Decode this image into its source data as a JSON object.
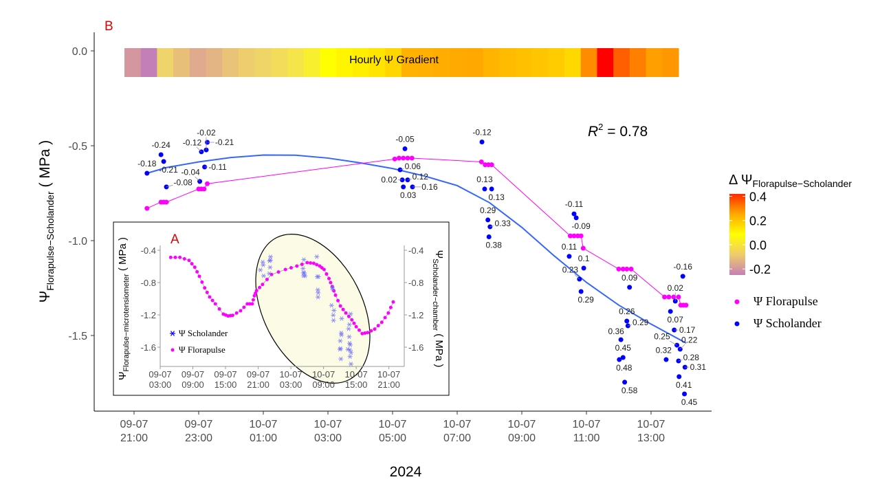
{
  "panel_label": "B",
  "chart_data": [
    {
      "type": "scatter",
      "xlabel": "2024",
      "ylabel": {
        "symbol": "Ψ",
        "sub": "Florapulse−Scholander",
        "unit": " ( MPa )"
      },
      "ylim": [
        -1.9,
        0.1
      ],
      "grid": false,
      "x_ticks": [
        {
          "date": "09-07",
          "time": "21:00"
        },
        {
          "date": "09-07",
          "time": "23:00"
        },
        {
          "date": "10-07",
          "time": "01:00"
        },
        {
          "date": "10-07",
          "time": "03:00"
        },
        {
          "date": "10-07",
          "time": "05:00"
        },
        {
          "date": "10-07",
          "time": "07:00"
        },
        {
          "date": "10-07",
          "time": "09:00"
        },
        {
          "date": "10-07",
          "time": "11:00"
        },
        {
          "date": "10-07",
          "time": "13:00"
        }
      ],
      "y_ticks": [
        "0.0",
        "-0.5",
        "-1.0",
        "-1.5"
      ],
      "y_tick_values": [
        0,
        -0.5,
        -1.0,
        -1.5
      ],
      "annotation": {
        "r": "R",
        "sup": "2",
        "rest": " = 0.78"
      },
      "heatmap": {
        "title": "Hourly Ψ Gradient",
        "colors": [
          "#d4979f",
          "#c27fb8",
          "#efd46c",
          "#e8bf78",
          "#dfaa8e",
          "#e3b584",
          "#e9c478",
          "#eecd6e",
          "#efd468",
          "#f2dc5a",
          "#f5e54a",
          "#f8f02e",
          "#ffff00",
          "#fff500",
          "#ffee00",
          "#ffe400",
          "#ffd600",
          "#ffb300",
          "#ffb000",
          "#ffad00",
          "#ffaa00",
          "#ffa800",
          "#ffb400",
          "#ffbb00",
          "#ffc000",
          "#ffc500",
          "#ffcc00",
          "#ffd800",
          "#ff8c00",
          "#ff0000",
          "#ff5f00",
          "#ff8000",
          "#ffa000",
          "#ff9800"
        ]
      },
      "colorbar": {
        "title_prefix": "Δ Ψ",
        "title_sub": "Florapulse−Scholander",
        "ticks": [
          "0.4",
          "0.2",
          "0.0",
          "-0.2"
        ],
        "range": [
          -0.25,
          0.42
        ],
        "colors": [
          "#c77fb6",
          "#eecb6c",
          "#ffff00",
          "#ffaa00",
          "#ff2a00"
        ]
      },
      "legend": {
        "position": "right",
        "items": [
          {
            "label": "Ψ Florapulse",
            "color": "#ff00ff"
          },
          {
            "label": "Ψ Scholander",
            "color": "#0000ff"
          }
        ]
      },
      "series": [
        {
          "name": "Ψ Scholander",
          "color": "#0000ff",
          "points": [
            {
              "t": "09-07 21:24",
              "v": -0.645,
              "label": "-0.18"
            },
            {
              "t": "09-07 21:50",
              "v": -0.547,
              "label": "-0.24"
            },
            {
              "t": "09-07 21:55",
              "v": -0.583,
              "label": "-0.21"
            },
            {
              "t": "09-07 22:00",
              "v": -0.717,
              "label": "-0.08"
            },
            {
              "t": "09-07 23:02",
              "v": -0.688,
              "label": "-0.04"
            },
            {
              "t": "09-07 23:05",
              "v": -0.532,
              "label": "-0.12"
            },
            {
              "t": "09-07 23:11",
              "v": -0.612,
              "label": "-0.11"
            },
            {
              "t": "09-07 23:14",
              "v": -0.522,
              "label": "-0.02"
            },
            {
              "t": "09-07 23:16",
              "v": -0.482,
              "label": "-0.21"
            },
            {
              "t": "10-07 05:14",
              "v": -0.627,
              "label": "0.06"
            },
            {
              "t": "10-07 05:18",
              "v": -0.68,
              "label": "0.02"
            },
            {
              "t": "10-07 05:20",
              "v": -0.717,
              "label": "0.03"
            },
            {
              "t": "10-07 05:23",
              "v": -0.516,
              "label": "-0.05"
            },
            {
              "t": "10-07 05:28",
              "v": -0.68,
              "label": "0.12"
            },
            {
              "t": "10-07 05:37",
              "v": -0.717,
              "label": "0.16"
            },
            {
              "t": "10-07 07:46",
              "v": -0.48,
              "label": "-0.12"
            },
            {
              "t": "10-07 07:51",
              "v": -0.728,
              "label": "0.13"
            },
            {
              "t": "10-07 07:57",
              "v": -0.891,
              "label": "0.29"
            },
            {
              "t": "10-07 07:59",
              "v": -0.98,
              "label": "0.38"
            },
            {
              "t": "10-07 08:01",
              "v": -0.927,
              "label": "0.33"
            },
            {
              "t": "10-07 08:04",
              "v": -0.728,
              "label": "0.13"
            },
            {
              "t": "10-07 10:28",
              "v": -1.083,
              "label": "0.11"
            },
            {
              "t": "10-07 10:37",
              "v": -0.859,
              "label": "-0.11"
            },
            {
              "t": "10-07 10:41",
              "v": -0.88,
              "label": "-0.09"
            },
            {
              "t": "10-07 10:47",
              "v": -1.203,
              "label": "0.23"
            },
            {
              "t": "10-07 10:50",
              "v": -1.268,
              "label": "0.29"
            },
            {
              "t": "10-07 10:55",
              "v": -1.145,
              "label": "0.1"
            },
            {
              "t": "10-07 12:01",
              "v": -1.627,
              "label": "0.48"
            },
            {
              "t": "10-07 12:04",
              "v": -1.522,
              "label": "0.36"
            },
            {
              "t": "10-07 12:08",
              "v": -1.616,
              "label": "0.45"
            },
            {
              "t": "10-07 12:11",
              "v": -1.746,
              "label": "0.58"
            },
            {
              "t": "10-07 12:15",
              "v": -1.424,
              "label": "0.26"
            },
            {
              "t": "10-07 12:17",
              "v": -1.449,
              "label": "0.29"
            },
            {
              "t": "10-07 12:20",
              "v": -1.246,
              "label": "0.09"
            },
            {
              "t": "10-07 13:28",
              "v": -1.627,
              "label": "0.32"
            },
            {
              "t": "10-07 13:36",
              "v": -1.373,
              "label": "0.07"
            },
            {
              "t": "10-07 13:43",
              "v": -1.471,
              "label": "0.17"
            },
            {
              "t": "10-07 13:45",
              "v": -1.319,
              "label": "0.02"
            },
            {
              "t": "10-07 13:48",
              "v": -1.551,
              "label": "0.25"
            },
            {
              "t": "10-07 13:51",
              "v": -1.634,
              "label": "0.28"
            },
            {
              "t": "10-07 13:52",
              "v": -1.717,
              "label": "0.41"
            },
            {
              "t": "10-07 13:54",
              "v": -1.572,
              "label": "0.22"
            },
            {
              "t": "10-07 13:59",
              "v": -1.188,
              "label": "-0.16"
            },
            {
              "t": "10-07 14:02",
              "v": -1.808,
              "label": "0.45"
            },
            {
              "t": "10-07 14:03",
              "v": -1.667,
              "label": "0.31"
            }
          ]
        },
        {
          "name": "Ψ Florapulse",
          "color": "#ff00ff",
          "points": [
            {
              "t": "09-07 21:24",
              "v": -0.83
            },
            {
              "t": "09-07 21:50",
              "v": -0.797
            },
            {
              "t": "09-07 21:55",
              "v": -0.797
            },
            {
              "t": "09-07 22:00",
              "v": -0.797
            },
            {
              "t": "09-07 23:00",
              "v": -0.728
            },
            {
              "t": "09-07 23:05",
              "v": -0.728
            },
            {
              "t": "09-07 23:10",
              "v": -0.728
            },
            {
              "t": "09-07 23:16",
              "v": -0.7
            },
            {
              "t": "10-07 05:04",
              "v": -0.57
            },
            {
              "t": "10-07 05:12",
              "v": -0.565
            },
            {
              "t": "10-07 05:20",
              "v": -0.565
            },
            {
              "t": "10-07 05:28",
              "v": -0.565
            },
            {
              "t": "10-07 05:36",
              "v": -0.565
            },
            {
              "t": "10-07 07:45",
              "v": -0.585
            },
            {
              "t": "10-07 07:52",
              "v": -0.6
            },
            {
              "t": "10-07 07:58",
              "v": -0.6
            },
            {
              "t": "10-07 08:04",
              "v": -0.6
            },
            {
              "t": "10-07 10:30",
              "v": -0.975
            },
            {
              "t": "10-07 10:37",
              "v": -0.975
            },
            {
              "t": "10-07 10:44",
              "v": -0.975
            },
            {
              "t": "10-07 10:50",
              "v": -0.975
            },
            {
              "t": "10-07 10:54",
              "v": -1.04
            },
            {
              "t": "10-07 12:00",
              "v": -1.15
            },
            {
              "t": "10-07 12:08",
              "v": -1.15
            },
            {
              "t": "10-07 12:15",
              "v": -1.15
            },
            {
              "t": "10-07 12:23",
              "v": -1.15
            },
            {
              "t": "10-07 13:25",
              "v": -1.297
            },
            {
              "t": "10-07 13:33",
              "v": -1.297
            },
            {
              "t": "10-07 13:42",
              "v": -1.297
            },
            {
              "t": "10-07 13:51",
              "v": -1.297
            },
            {
              "t": "10-07 13:55",
              "v": -1.34
            },
            {
              "t": "10-07 14:00",
              "v": -1.34
            },
            {
              "t": "10-07 14:05",
              "v": -1.34
            }
          ]
        }
      ],
      "scholander_fit": [
        {
          "t": "09-07 21:24",
          "v": -0.645
        },
        {
          "t": "09-07 22:00",
          "v": -0.615
        },
        {
          "t": "09-07 23:00",
          "v": -0.585
        },
        {
          "t": "10-07 00:00",
          "v": -0.562
        },
        {
          "t": "10-07 01:00",
          "v": -0.549
        },
        {
          "t": "10-07 02:00",
          "v": -0.55
        },
        {
          "t": "10-07 03:00",
          "v": -0.565
        },
        {
          "t": "10-07 04:00",
          "v": -0.59
        },
        {
          "t": "10-07 05:00",
          "v": -0.62
        },
        {
          "t": "10-07 06:00",
          "v": -0.66
        },
        {
          "t": "10-07 07:00",
          "v": -0.71
        },
        {
          "t": "10-07 08:00",
          "v": -0.8
        },
        {
          "t": "10-07 09:00",
          "v": -0.93
        },
        {
          "t": "10-07 10:00",
          "v": -1.08
        },
        {
          "t": "10-07 11:00",
          "v": -1.22
        },
        {
          "t": "10-07 12:00",
          "v": -1.34
        },
        {
          "t": "10-07 13:00",
          "v": -1.44
        },
        {
          "t": "10-07 14:05",
          "v": -1.54
        }
      ]
    },
    {
      "type": "scatter",
      "panel_label": "A",
      "ylabel_left": {
        "symbol": "Ψ",
        "sub": "Florapulse−microtensiometer",
        "unit": " ( MPa )"
      },
      "ylabel_right": {
        "symbol": "Ψ",
        "sub": "Scholander−chamber",
        "unit": " ( MPa )"
      },
      "y_ticks": [
        "-0.4",
        "-0.8",
        "-1.2",
        "-1.6"
      ],
      "y_tick_values": [
        -0.4,
        -0.8,
        -1.2,
        -1.6
      ],
      "x_ticks": [
        {
          "date": "09-07",
          "time": "03:00"
        },
        {
          "date": "09-07",
          "time": "09:00"
        },
        {
          "date": "09-07",
          "time": "15:00"
        },
        {
          "date": "09-07",
          "time": "21:00"
        },
        {
          "date": "10-07",
          "time": "03:00"
        },
        {
          "date": "10-07",
          "time": "09:00"
        },
        {
          "date": "10-07",
          "time": "15:00"
        },
        {
          "date": "10-07",
          "time": "21:00"
        }
      ],
      "legend": {
        "position": "bottom-left",
        "items": [
          {
            "label": "Ψ Scholander",
            "marker": "asterisk",
            "color": "#0000ff"
          },
          {
            "label": "Ψ Florapulse",
            "marker": "dot",
            "color": "#ff00ff"
          }
        ]
      },
      "highlight": "ellipse",
      "florapulse": [
        {
          "t": "09-07 04:56",
          "v": -0.488
        },
        {
          "t": "09-07 06:37",
          "v": -0.488
        },
        {
          "t": "09-07 08:18",
          "v": -0.525
        },
        {
          "t": "09-07 09:21",
          "v": -0.61
        },
        {
          "t": "09-07 10:12",
          "v": -0.723
        },
        {
          "t": "09-07 11:10",
          "v": -0.866
        },
        {
          "t": "09-07 12:05",
          "v": -0.979
        },
        {
          "t": "09-07 13:08",
          "v": -1.064
        },
        {
          "t": "09-07 14:36",
          "v": -1.19
        },
        {
          "t": "09-07 15:28",
          "v": -1.214
        },
        {
          "t": "09-07 16:18",
          "v": -1.206
        },
        {
          "t": "09-07 17:46",
          "v": -1.149
        },
        {
          "t": "09-07 19:00",
          "v": -1.064
        },
        {
          "t": "09-07 19:54",
          "v": -1.064
        },
        {
          "t": "09-07 20:18",
          "v": -0.964
        },
        {
          "t": "09-07 20:42",
          "v": -0.9
        },
        {
          "t": "09-07 21:48",
          "v": -0.823
        },
        {
          "t": "09-07 23:27",
          "v": -0.7
        },
        {
          "t": "10-07 02:00",
          "v": -0.638
        },
        {
          "t": "10-07 04:06",
          "v": -0.596
        },
        {
          "t": "10-07 06:00",
          "v": -0.553
        },
        {
          "t": "10-07 07:12",
          "v": -0.562
        },
        {
          "t": "10-07 08:18",
          "v": -0.596
        },
        {
          "t": "10-07 09:06",
          "v": -0.638
        },
        {
          "t": "10-07 10:00",
          "v": -0.75
        },
        {
          "t": "10-07 10:36",
          "v": -0.85
        },
        {
          "t": "10-07 11:12",
          "v": -0.956
        },
        {
          "t": "10-07 12:06",
          "v": -1.09
        },
        {
          "t": "10-07 13:06",
          "v": -1.177
        },
        {
          "t": "10-07 14:12",
          "v": -1.262
        },
        {
          "t": "10-07 15:00",
          "v": -1.347
        },
        {
          "t": "10-07 16:06",
          "v": -1.432
        },
        {
          "t": "10-07 17:06",
          "v": -1.419
        },
        {
          "t": "10-07 18:24",
          "v": -1.376
        },
        {
          "t": "10-07 19:42",
          "v": -1.291
        },
        {
          "t": "10-07 20:54",
          "v": -1.177
        },
        {
          "t": "10-07 21:48",
          "v": -1.04
        }
      ]
    }
  ]
}
